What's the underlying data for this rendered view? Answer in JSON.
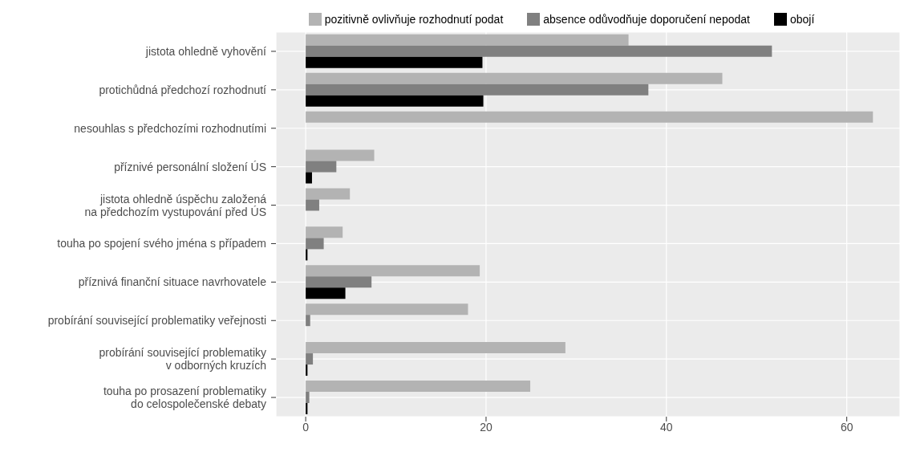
{
  "chart_data": {
    "type": "bar",
    "orientation": "horizontal",
    "categories": [
      "jistota ohledně vyhovění",
      "protichůdná předchozí rozhodnutí",
      "nesouhlas s předchozími rozhodnutími",
      "příznivé personální složení ÚS",
      "jistota ohledně úspěchu založená\nna předchozím vystupování před ÚS",
      "touha po spojení svého jména s případem",
      "příznivá finanční situace navrhovatele",
      "probírání související problematiky veřejnosti",
      "probírání související problematiky\nv odborných kruzích",
      "touha po prosazení problematiky\ndo celospolečenské debaty"
    ],
    "series": [
      {
        "name": "pozitivně ovlivňuje rozhodnutí podat",
        "color": "#b3b3b3",
        "values": [
          35.8,
          46.2,
          62.9,
          7.6,
          4.9,
          4.1,
          19.3,
          18.0,
          28.8,
          24.9
        ]
      },
      {
        "name": "absence odůvodňuje doporučení nepodat",
        "color": "#808080",
        "values": [
          51.7,
          38.0,
          0,
          3.4,
          1.5,
          2.0,
          7.3,
          0.5,
          0.8,
          0.4
        ]
      },
      {
        "name": "obojí",
        "color": "#000000",
        "values": [
          19.6,
          19.7,
          0,
          0.7,
          0,
          0.2,
          4.4,
          0,
          0.2,
          0.2
        ]
      }
    ],
    "xlim": [
      -3.3,
      65.9
    ],
    "xticks": [
      0,
      20,
      40,
      60
    ],
    "grid": true,
    "legend": "top"
  }
}
